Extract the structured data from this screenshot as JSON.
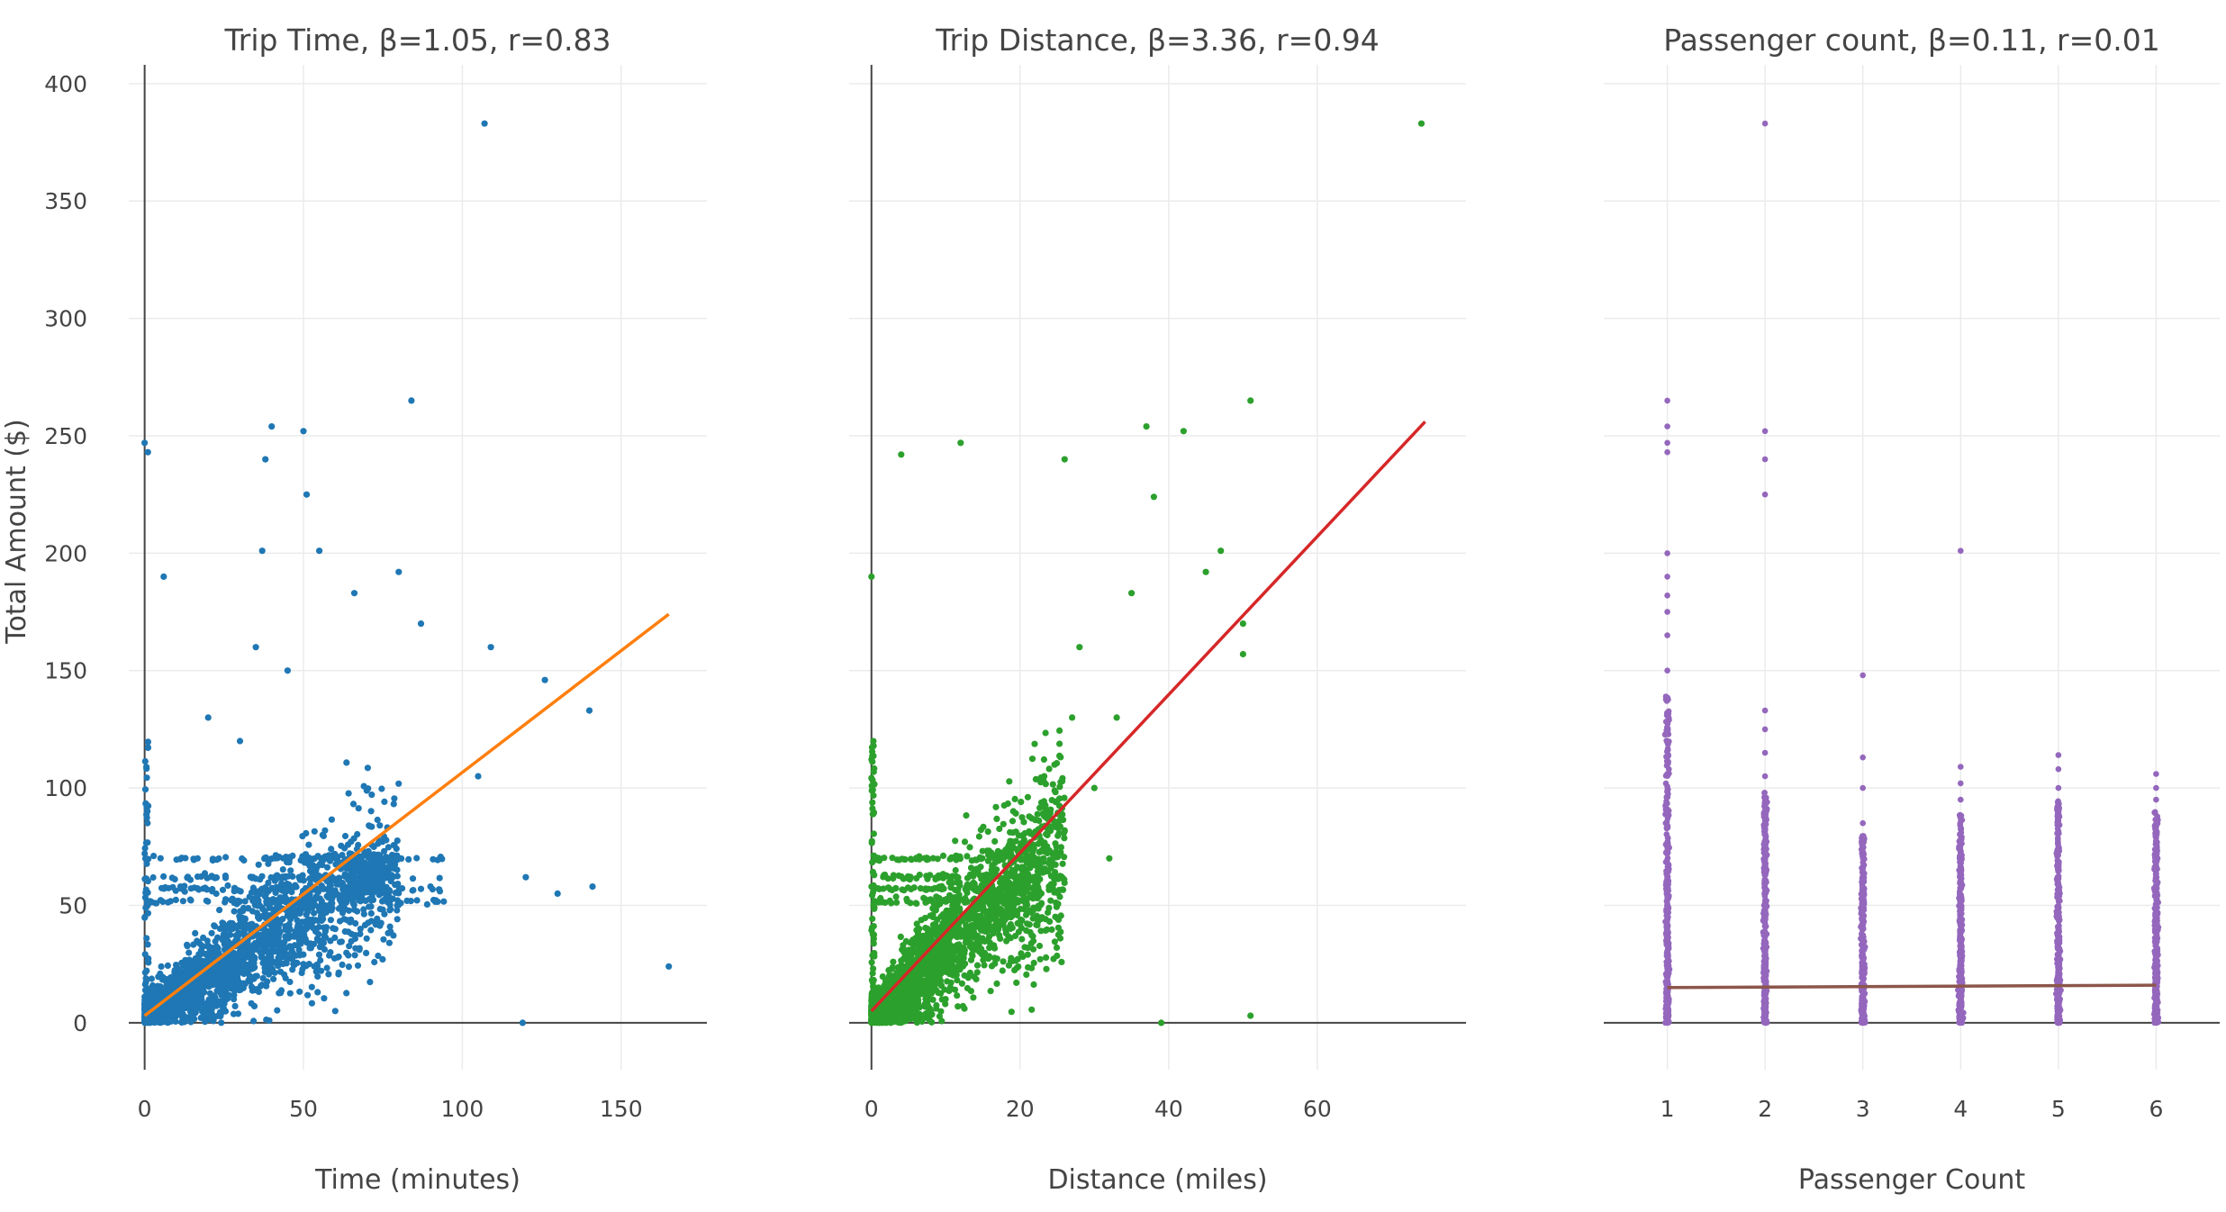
{
  "chart_data": [
    {
      "type": "scatter",
      "title": "Trip Time, β=1.05, r=0.83",
      "xlabel": "Time (minutes)",
      "ylabel": "Total Amount ($)",
      "xlim": [
        -5,
        177
      ],
      "ylim": [
        -20,
        408
      ],
      "xticks": [
        0,
        50,
        100,
        150
      ],
      "yticks": [
        0,
        50,
        100,
        150,
        200,
        250,
        300,
        350,
        400
      ],
      "grid": true,
      "point_color": "#1f77b4",
      "fit_color": "#ff7f0e",
      "fit_line": {
        "x": [
          0,
          165
        ],
        "y": [
          3,
          174
        ]
      },
      "dense_band": {
        "x_range": [
          0,
          80
        ],
        "description_slope": 1.05
      },
      "outliers": {
        "x": [
          0,
          1,
          6,
          37,
          38,
          40,
          50,
          51,
          55,
          66,
          80,
          84,
          87,
          107,
          109,
          126,
          140,
          141,
          165,
          119,
          105,
          130,
          120,
          90,
          75,
          60,
          35,
          20,
          30,
          45
        ],
        "y": [
          247,
          243,
          190,
          201,
          240,
          254,
          252,
          225,
          201,
          183,
          192,
          265,
          170,
          383,
          160,
          146,
          133,
          58,
          24,
          0,
          105,
          55,
          62,
          58,
          52,
          5,
          160,
          130,
          120,
          150
        ]
      }
    },
    {
      "type": "scatter",
      "title": "Trip Distance, β=3.36, r=0.94",
      "xlabel": "Distance (miles)",
      "ylabel": "",
      "xlim": [
        -3,
        80
      ],
      "ylim": [
        -20,
        408
      ],
      "xticks": [
        0,
        20,
        40,
        60
      ],
      "yticks": [
        0,
        50,
        100,
        150,
        200,
        250,
        300,
        350,
        400
      ],
      "grid": true,
      "point_color": "#2ca02c",
      "fit_color": "#d62728",
      "fit_line": {
        "x": [
          0,
          74.5
        ],
        "y": [
          5,
          256
        ]
      },
      "dense_band": {
        "x_range": [
          0,
          26
        ],
        "description_slope": 3.36
      },
      "outliers": {
        "x": [
          0,
          4,
          12,
          26,
          37,
          38,
          42,
          47,
          51,
          74,
          45,
          50,
          50,
          35,
          33,
          30,
          28,
          39,
          51,
          32,
          27
        ],
        "y": [
          190,
          242,
          247,
          240,
          254,
          224,
          252,
          201,
          265,
          383,
          192,
          170,
          157,
          183,
          130,
          100,
          160,
          0,
          3,
          70,
          130
        ]
      }
    },
    {
      "type": "scatter",
      "title": "Passenger count, β=0.11, r=0.01",
      "xlabel": "Passenger Count",
      "ylabel": "",
      "xlim": [
        0.35,
        6.65
      ],
      "ylim": [
        -20,
        408
      ],
      "xticks": [
        1,
        2,
        3,
        4,
        5,
        6
      ],
      "yticks": [
        0,
        50,
        100,
        150,
        200,
        250,
        300,
        350,
        400
      ],
      "grid": true,
      "point_color": "#9467bd",
      "fit_color": "#8c564b",
      "fit_line": {
        "x": [
          1,
          6
        ],
        "y": [
          15,
          16
        ]
      },
      "columns": [
        {
          "x": 1,
          "dense_max": 140,
          "outliers": [
            150,
            165,
            175,
            182,
            190,
            200,
            243,
            247,
            254,
            265
          ]
        },
        {
          "x": 2,
          "dense_max": 100,
          "outliers": [
            105,
            115,
            125,
            133,
            225,
            240,
            252,
            383
          ]
        },
        {
          "x": 3,
          "dense_max": 80,
          "outliers": [
            85,
            100,
            113,
            148
          ]
        },
        {
          "x": 4,
          "dense_max": 90,
          "outliers": [
            95,
            102,
            109,
            201
          ]
        },
        {
          "x": 5,
          "dense_max": 95,
          "outliers": [
            100,
            108,
            114
          ]
        },
        {
          "x": 6,
          "dense_max": 90,
          "outliers": [
            95,
            100,
            106
          ]
        }
      ]
    }
  ]
}
